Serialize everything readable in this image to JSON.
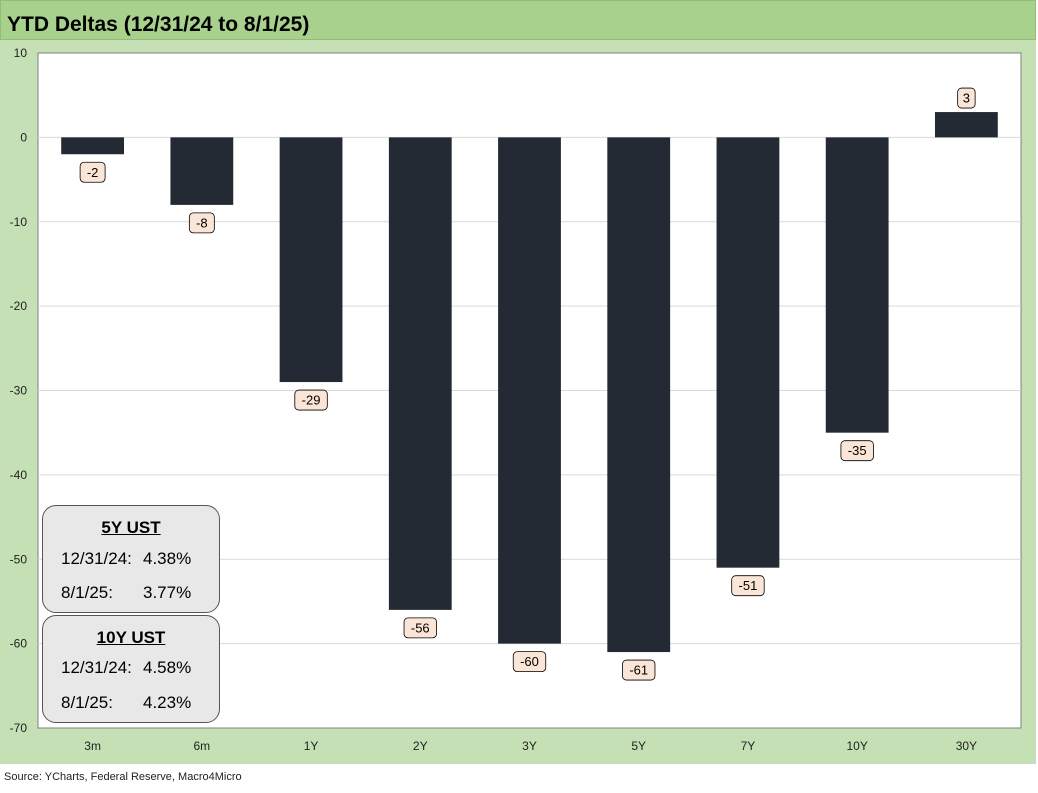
{
  "title": "YTD Deltas (12/31/24 to 8/1/25)",
  "source": "Source: YCharts, Federal Reserve, Macro4Micro",
  "colors": {
    "bar": "#232a34",
    "background": "#c5e0b4",
    "plot_area": "#ffffff",
    "title_bar": "#a9d18e",
    "label_box": "#fbe5d6"
  },
  "chart_data": {
    "type": "bar",
    "title": "YTD Deltas (12/31/24 to 8/1/25)",
    "categories": [
      "3m",
      "6m",
      "1Y",
      "2Y",
      "3Y",
      "5Y",
      "7Y",
      "10Y",
      "30Y"
    ],
    "values": [
      -2,
      -8,
      -29,
      -56,
      -60,
      -61,
      -51,
      -35,
      3
    ],
    "ylim": [
      -70,
      10
    ],
    "yticks": [
      10,
      0,
      -10,
      -20,
      -30,
      -40,
      -50,
      -60,
      -70
    ],
    "xlabel": "",
    "ylabel": "",
    "grid": true,
    "legend": "none"
  },
  "box_5y": {
    "title": "5Y UST",
    "rows": [
      {
        "date": "12/31/24:",
        "value": "4.38%"
      },
      {
        "date": "8/1/25:",
        "value": "3.77%"
      }
    ]
  },
  "box_10y": {
    "title": "10Y UST",
    "rows": [
      {
        "date": "12/31/24:",
        "value": "4.58%"
      },
      {
        "date": "8/1/25:",
        "value": "4.23%"
      }
    ]
  }
}
